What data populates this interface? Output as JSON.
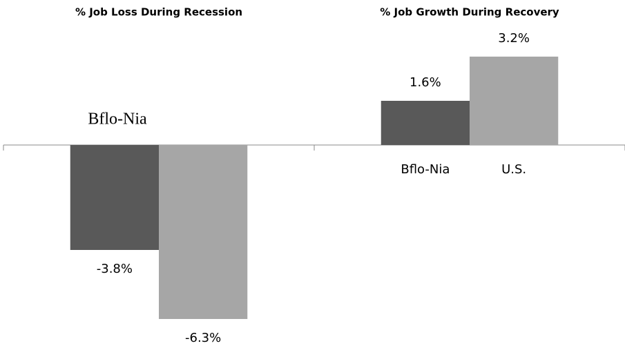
{
  "chart_data": {
    "type": "bar",
    "categories": [
      "% Job Loss During Recession",
      "% Job Growth During Recovery"
    ],
    "series": [
      {
        "name": "Bflo-Nia",
        "color": "#595959",
        "values": [
          -3.8,
          1.6
        ],
        "value_labels": [
          "-3.8%",
          "1.6%"
        ]
      },
      {
        "name": "U.S.",
        "color": "#a6a6a6",
        "values": [
          -6.3,
          3.2
        ],
        "value_labels": [
          "-6.3%",
          "3.2%"
        ]
      }
    ],
    "ylim": [
      -7,
      5
    ]
  }
}
